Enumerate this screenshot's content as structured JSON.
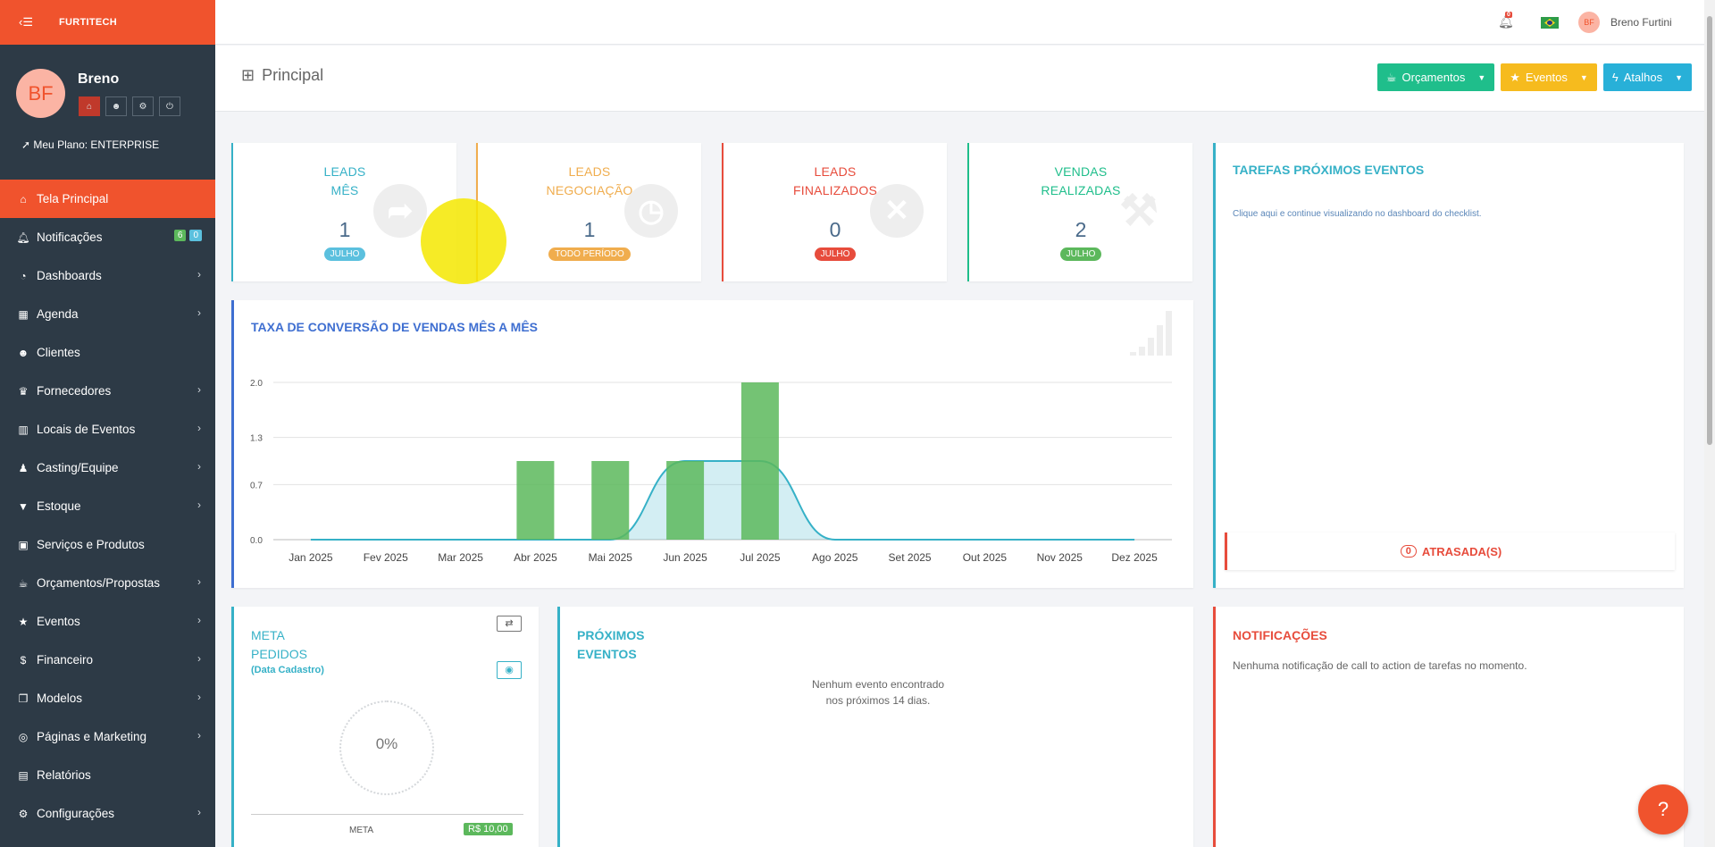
{
  "sidebar": {
    "brand": "FURTITECH",
    "profile": {
      "initials": "BF",
      "name": "Breno",
      "plan": "Meu Plano: ENTERPRISE"
    },
    "items": [
      {
        "label": "Tela Principal",
        "icon": "home-icon",
        "glyph": "⌂",
        "active": true
      },
      {
        "label": "Notificações",
        "icon": "bell-icon",
        "glyph": "🔔︎",
        "badges": [
          "6",
          "0"
        ]
      },
      {
        "label": "Dashboards",
        "icon": "dashboard-icon",
        "glyph": "◔",
        "chevron": true
      },
      {
        "label": "Agenda",
        "icon": "calendar-icon",
        "glyph": "▦",
        "chevron": true
      },
      {
        "label": "Clientes",
        "icon": "users-icon",
        "glyph": "☻"
      },
      {
        "label": "Fornecedores",
        "icon": "trophy-icon",
        "glyph": "♛",
        "chevron": true
      },
      {
        "label": "Locais de Eventos",
        "icon": "building-icon",
        "glyph": "▥",
        "chevron": true
      },
      {
        "label": "Casting/Equipe",
        "icon": "person-icon",
        "glyph": "♟",
        "chevron": true
      },
      {
        "label": "Estoque",
        "icon": "glass-icon",
        "glyph": "▼",
        "chevron": true
      },
      {
        "label": "Serviços e Produtos",
        "icon": "archive-icon",
        "glyph": "▣"
      },
      {
        "label": "Orçamentos/Propostas",
        "icon": "coffee-icon",
        "glyph": "☕︎",
        "chevron": true
      },
      {
        "label": "Eventos",
        "icon": "star-icon",
        "glyph": "★",
        "chevron": true
      },
      {
        "label": "Financeiro",
        "icon": "dollar-icon",
        "glyph": "$",
        "chevron": true
      },
      {
        "label": "Modelos",
        "icon": "copy-icon",
        "glyph": "❐",
        "chevron": true
      },
      {
        "label": "Páginas e Marketing",
        "icon": "target-icon",
        "glyph": "◎",
        "chevron": true
      },
      {
        "label": "Relatórios",
        "icon": "chart-icon",
        "glyph": "▤"
      },
      {
        "label": "Configurações",
        "icon": "gear-icon",
        "glyph": "⚙",
        "chevron": true
      }
    ]
  },
  "topbar": {
    "bell_badge": "0",
    "user_initials": "BF",
    "user_name": "Breno Furtini"
  },
  "header": {
    "title": "Principal",
    "buttons": [
      {
        "label": "Orçamentos",
        "color": "#1fbe8b"
      },
      {
        "label": "Eventos",
        "color": "#f6bb1e"
      },
      {
        "label": "Atalhos",
        "color": "#28b0d8"
      }
    ]
  },
  "stats": [
    {
      "title1": "LEADS",
      "title2": "MÊS",
      "value": "1",
      "badge": "JULHO",
      "color": "#36b1c7",
      "badge_color": "#5bc0de"
    },
    {
      "title1": "LEADS",
      "title2": "NEGOCIAÇÃO",
      "value": "1",
      "badge": "TODO PERÍODO",
      "color": "#f0ad4e",
      "badge_color": "#f0ad4e"
    },
    {
      "title1": "LEADS",
      "title2": "FINALIZADOS",
      "value": "0",
      "badge": "JULHO",
      "color": "#e74c3c",
      "badge_color": "#e74c3c"
    },
    {
      "title1": "VENDAS",
      "title2": "REALIZADAS",
      "value": "2",
      "badge": "JULHO",
      "color": "#1fbe8b",
      "badge_color": "#5cb85c"
    }
  ],
  "conversion": {
    "title": "TAXA DE CONVERSÃO DE VENDAS MÊS A MÊS"
  },
  "chart_data": {
    "type": "bar",
    "title": "TAXA DE CONVERSÃO DE VENDAS MÊS A MÊS",
    "categories": [
      "Jan 2025",
      "Fev 2025",
      "Mar 2025",
      "Abr 2025",
      "Mai 2025",
      "Jun 2025",
      "Jul 2025",
      "Ago 2025",
      "Set 2025",
      "Out 2025",
      "Nov 2025",
      "Dez 2025"
    ],
    "yticks": [
      "0.0",
      "0.7",
      "1.3",
      "2.0"
    ],
    "ylim": [
      0,
      2
    ],
    "grid": true,
    "series": [
      {
        "type": "bar",
        "color": "#5cb85c",
        "values": [
          0,
          0,
          0,
          1,
          1,
          1,
          2,
          0,
          0,
          0,
          0,
          0
        ]
      },
      {
        "type": "area",
        "color": "#36b1c7",
        "values": [
          0,
          0,
          0,
          0,
          0,
          1,
          1,
          0,
          0,
          0,
          0,
          0
        ]
      }
    ]
  },
  "tasks": {
    "title": "TAREFAS PRÓXIMOS EVENTOS",
    "link": "Clique aqui e continue visualizando no dashboard do checklist.",
    "late_count": "0",
    "late_label": "ATRASADA(S)"
  },
  "meta": {
    "title1": "META",
    "title2": "PEDIDOS",
    "subtitle": "(Data Cadastro)",
    "percent": "0%",
    "meta_label": "META",
    "meta_value": "R$ 10,00"
  },
  "events": {
    "title1": "PRÓXIMOS",
    "title2": "EVENTOS",
    "empty1": "Nenhum evento encontrado",
    "empty2": "nos próximos 14 dias."
  },
  "notifications": {
    "title": "NOTIFICAÇÕES",
    "empty": "Nenhuma notificação de call to action de tarefas no momento."
  }
}
